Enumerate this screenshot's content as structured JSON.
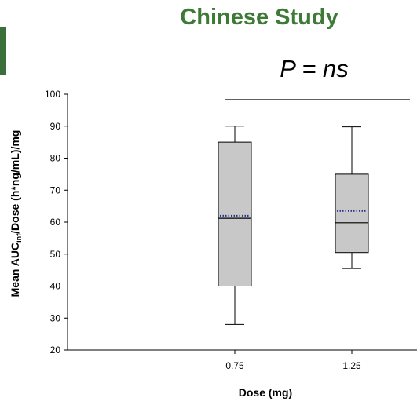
{
  "page": {
    "title": "Chinese Study",
    "p_value_text": "P = ns"
  },
  "colors": {
    "title": "#3d7a35",
    "accent_bar": "#3a6f3a",
    "box_fill": "#c8c8c8",
    "mean_line": "#1f2f8f"
  },
  "chart_data": {
    "type": "box",
    "xlabel": "Dose (mg)",
    "ylabel_main": "Mean AUC",
    "ylabel_sub": "inf",
    "ylabel_rest": "/Dose (h*ng/mL)/mg",
    "ylim": [
      20,
      100
    ],
    "yticks": [
      20,
      30,
      40,
      50,
      60,
      70,
      80,
      90,
      100
    ],
    "categories": [
      "0.75",
      "1.25"
    ],
    "boxes": [
      {
        "label": "0.75",
        "whisker_low": 28,
        "q1": 40,
        "median": 61.2,
        "mean": 62,
        "q3": 85,
        "whisker_high": 90
      },
      {
        "label": "1.25",
        "whisker_low": 45.5,
        "q1": 50.5,
        "median": 59.8,
        "mean": 63.5,
        "q3": 75,
        "whisker_high": 89.8
      }
    ],
    "significance_bracket": {
      "from": "0.75",
      "to": "1.25",
      "label": "P = ns"
    },
    "grid": false
  }
}
